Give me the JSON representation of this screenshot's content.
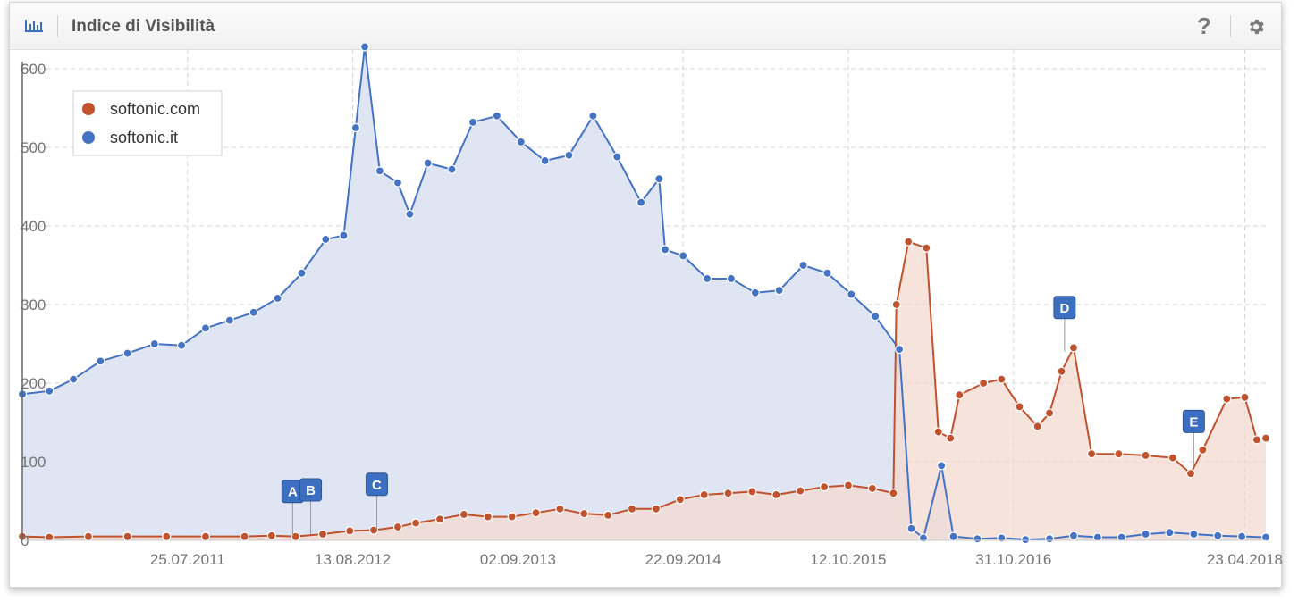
{
  "header": {
    "title": "Indice di Visibilità",
    "chart_icon": "bar-chart-icon",
    "help_icon": "question-mark-icon",
    "help_label": "?",
    "settings_icon": "gear-icon"
  },
  "colors": {
    "softonic_com": "#c0522d",
    "softonic_it": "#4472c4",
    "area_com": "#f3dad0",
    "area_it": "#dde4f1",
    "flag": "#3d6fc0",
    "grid": "#d4d4d4",
    "axis_text": "#757575"
  },
  "chart_data": {
    "type": "area",
    "title": "Indice di Visibilità",
    "xlabel": "",
    "ylabel": "",
    "ylim": [
      0,
      625
    ],
    "yticks": [
      0,
      100,
      200,
      300,
      400,
      500,
      600
    ],
    "xticks": [
      "25.07.2011",
      "13.08.2012",
      "02.09.2013",
      "22.09.2014",
      "12.10.2015",
      "31.10.2016",
      "23.04.2018"
    ],
    "x_range": [
      "2010-07-05",
      "2018-06-11"
    ],
    "grid": true,
    "legend_position": "top-left",
    "series": [
      {
        "name": "softonic.com",
        "color": "#c0522d",
        "points": [
          [
            "2010-07-05",
            5
          ],
          [
            "2010-09-06",
            4
          ],
          [
            "2010-12-06",
            5
          ],
          [
            "2011-03-07",
            5
          ],
          [
            "2011-06-06",
            5
          ],
          [
            "2011-09-05",
            5
          ],
          [
            "2011-12-05",
            5
          ],
          [
            "2012-02-06",
            6
          ],
          [
            "2012-04-02",
            5
          ],
          [
            "2012-06-04",
            8
          ],
          [
            "2012-08-06",
            12
          ],
          [
            "2012-10-01",
            13
          ],
          [
            "2012-11-26",
            17
          ],
          [
            "2013-01-07",
            22
          ],
          [
            "2013-03-04",
            27
          ],
          [
            "2013-04-29",
            33
          ],
          [
            "2013-06-24",
            30
          ],
          [
            "2013-08-19",
            30
          ],
          [
            "2013-10-14",
            35
          ],
          [
            "2013-12-09",
            40
          ],
          [
            "2014-02-03",
            34
          ],
          [
            "2014-03-31",
            32
          ],
          [
            "2014-05-26",
            40
          ],
          [
            "2014-07-21",
            40
          ],
          [
            "2014-09-15",
            52
          ],
          [
            "2014-11-10",
            58
          ],
          [
            "2015-01-05",
            60
          ],
          [
            "2015-03-02",
            62
          ],
          [
            "2015-04-27",
            58
          ],
          [
            "2015-06-22",
            63
          ],
          [
            "2015-08-17",
            68
          ],
          [
            "2015-10-12",
            70
          ],
          [
            "2015-12-07",
            66
          ],
          [
            "2016-01-25",
            60
          ],
          [
            "2016-02-01",
            300
          ],
          [
            "2016-02-29",
            380
          ],
          [
            "2016-04-11",
            372
          ],
          [
            "2016-05-09",
            138
          ],
          [
            "2016-06-06",
            130
          ],
          [
            "2016-06-27",
            185
          ],
          [
            "2016-08-22",
            200
          ],
          [
            "2016-10-03",
            205
          ],
          [
            "2016-11-14",
            170
          ],
          [
            "2016-12-26",
            145
          ],
          [
            "2017-01-23",
            162
          ],
          [
            "2017-02-20",
            215
          ],
          [
            "2017-03-20",
            245
          ],
          [
            "2017-05-01",
            110
          ],
          [
            "2017-07-03",
            110
          ],
          [
            "2017-09-04",
            108
          ],
          [
            "2017-11-06",
            105
          ],
          [
            "2017-12-18",
            85
          ],
          [
            "2018-01-15",
            115
          ],
          [
            "2018-03-12",
            180
          ],
          [
            "2018-04-23",
            182
          ],
          [
            "2018-05-21",
            128
          ],
          [
            "2018-06-11",
            130
          ]
        ]
      },
      {
        "name": "softonic.it",
        "color": "#4472c4",
        "points": [
          [
            "2010-07-05",
            186
          ],
          [
            "2010-09-06",
            190
          ],
          [
            "2010-11-01",
            205
          ],
          [
            "2011-01-03",
            228
          ],
          [
            "2011-03-07",
            238
          ],
          [
            "2011-05-09",
            250
          ],
          [
            "2011-07-11",
            248
          ],
          [
            "2011-09-05",
            270
          ],
          [
            "2011-10-31",
            280
          ],
          [
            "2011-12-26",
            290
          ],
          [
            "2012-02-20",
            308
          ],
          [
            "2012-04-16",
            340
          ],
          [
            "2012-06-11",
            383
          ],
          [
            "2012-07-23",
            388
          ],
          [
            "2012-08-20",
            525
          ],
          [
            "2012-09-10",
            628
          ],
          [
            "2012-10-15",
            470
          ],
          [
            "2012-11-26",
            455
          ],
          [
            "2012-12-24",
            415
          ],
          [
            "2013-02-04",
            480
          ],
          [
            "2013-04-01",
            472
          ],
          [
            "2013-05-20",
            532
          ],
          [
            "2013-07-15",
            540
          ],
          [
            "2013-09-09",
            507
          ],
          [
            "2013-11-04",
            483
          ],
          [
            "2013-12-30",
            490
          ],
          [
            "2014-02-24",
            540
          ],
          [
            "2014-04-21",
            488
          ],
          [
            "2014-06-16",
            430
          ],
          [
            "2014-07-28",
            460
          ],
          [
            "2014-08-11",
            370
          ],
          [
            "2014-09-22",
            362
          ],
          [
            "2014-11-17",
            333
          ],
          [
            "2015-01-12",
            333
          ],
          [
            "2015-03-09",
            315
          ],
          [
            "2015-05-04",
            318
          ],
          [
            "2015-06-29",
            350
          ],
          [
            "2015-08-24",
            340
          ],
          [
            "2015-10-19",
            313
          ],
          [
            "2015-12-14",
            285
          ],
          [
            "2016-02-08",
            243
          ],
          [
            "2016-03-07",
            15
          ],
          [
            "2016-04-04",
            3
          ],
          [
            "2016-05-16",
            95
          ],
          [
            "2016-06-13",
            5
          ],
          [
            "2016-08-08",
            2
          ],
          [
            "2016-10-03",
            3
          ],
          [
            "2016-11-28",
            1
          ],
          [
            "2017-01-23",
            2
          ],
          [
            "2017-03-20",
            6
          ],
          [
            "2017-05-15",
            4
          ],
          [
            "2017-07-10",
            4
          ],
          [
            "2017-09-04",
            8
          ],
          [
            "2017-10-30",
            10
          ],
          [
            "2017-12-25",
            8
          ],
          [
            "2018-02-19",
            6
          ],
          [
            "2018-04-16",
            5
          ],
          [
            "2018-06-11",
            4
          ]
        ]
      }
    ],
    "annotations": [
      {
        "label": "A",
        "date": "2012-03-26",
        "value": 6
      },
      {
        "label": "B",
        "date": "2012-05-07",
        "value": 8
      },
      {
        "label": "C",
        "date": "2012-10-08",
        "value": 15
      },
      {
        "label": "D",
        "date": "2017-02-27",
        "value": 240
      },
      {
        "label": "E",
        "date": "2017-12-25",
        "value": 95
      }
    ]
  }
}
